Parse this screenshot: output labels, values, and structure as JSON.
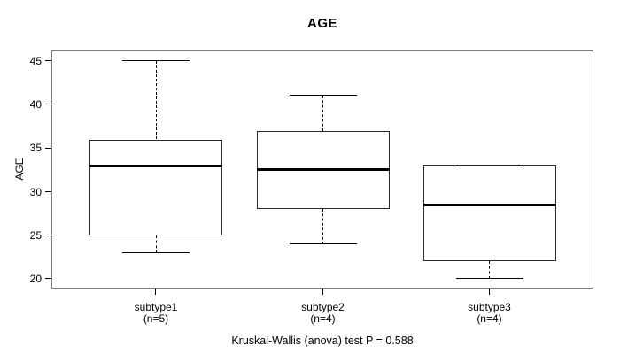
{
  "chart_data": {
    "type": "boxplot",
    "title": "AGE",
    "ylabel": "AGE",
    "yticks": [
      20,
      25,
      30,
      35,
      40,
      45
    ],
    "ylim": [
      18.9,
      46.2
    ],
    "grid": false,
    "footer": "Kruskal-Wallis (anova) test P = 0.588",
    "groups": [
      {
        "label": "subtype1",
        "sublabel": "(n=5)",
        "n": 5,
        "whisker_low": 23,
        "q1": 25,
        "median": 33,
        "q3": 36,
        "whisker_high": 45
      },
      {
        "label": "subtype2",
        "sublabel": "(n=4)",
        "n": 4,
        "whisker_low": 24,
        "q1": 28,
        "median": 32.5,
        "q3": 37,
        "whisker_high": 41
      },
      {
        "label": "subtype3",
        "sublabel": "(n=4)",
        "n": 4,
        "whisker_low": 20,
        "q1": 22,
        "median": 28.5,
        "q3": 33,
        "whisker_high": 33
      }
    ],
    "colors": {
      "line": "#000000",
      "plot_border": "#7a7a7a",
      "background": "#ffffff"
    }
  }
}
